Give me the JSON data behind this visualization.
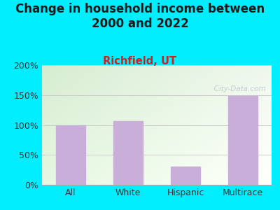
{
  "title": "Change in household income between\n2000 and 2022",
  "subtitle": "Richfield, UT",
  "categories": [
    "All",
    "White",
    "Hispanic",
    "Multirace"
  ],
  "values": [
    100,
    106,
    30,
    148
  ],
  "bar_color": "#c9aeda",
  "background_color": "#00eeff",
  "title_fontsize": 12,
  "subtitle_fontsize": 10.5,
  "subtitle_color": "#cc2222",
  "title_color": "#1a1a1a",
  "ylim": [
    0,
    200
  ],
  "yticks": [
    0,
    50,
    100,
    150,
    200
  ],
  "ytick_labels": [
    "0%",
    "50%",
    "100%",
    "150%",
    "200%"
  ],
  "watermark": "  City-Data.com",
  "watermark_color": "#a8b4bc",
  "watermark_alpha": 0.6,
  "tick_label_fontsize": 9,
  "plot_bg_color_topleft": "#d8ecd4",
  "plot_bg_color_right": "#f0f5ec"
}
